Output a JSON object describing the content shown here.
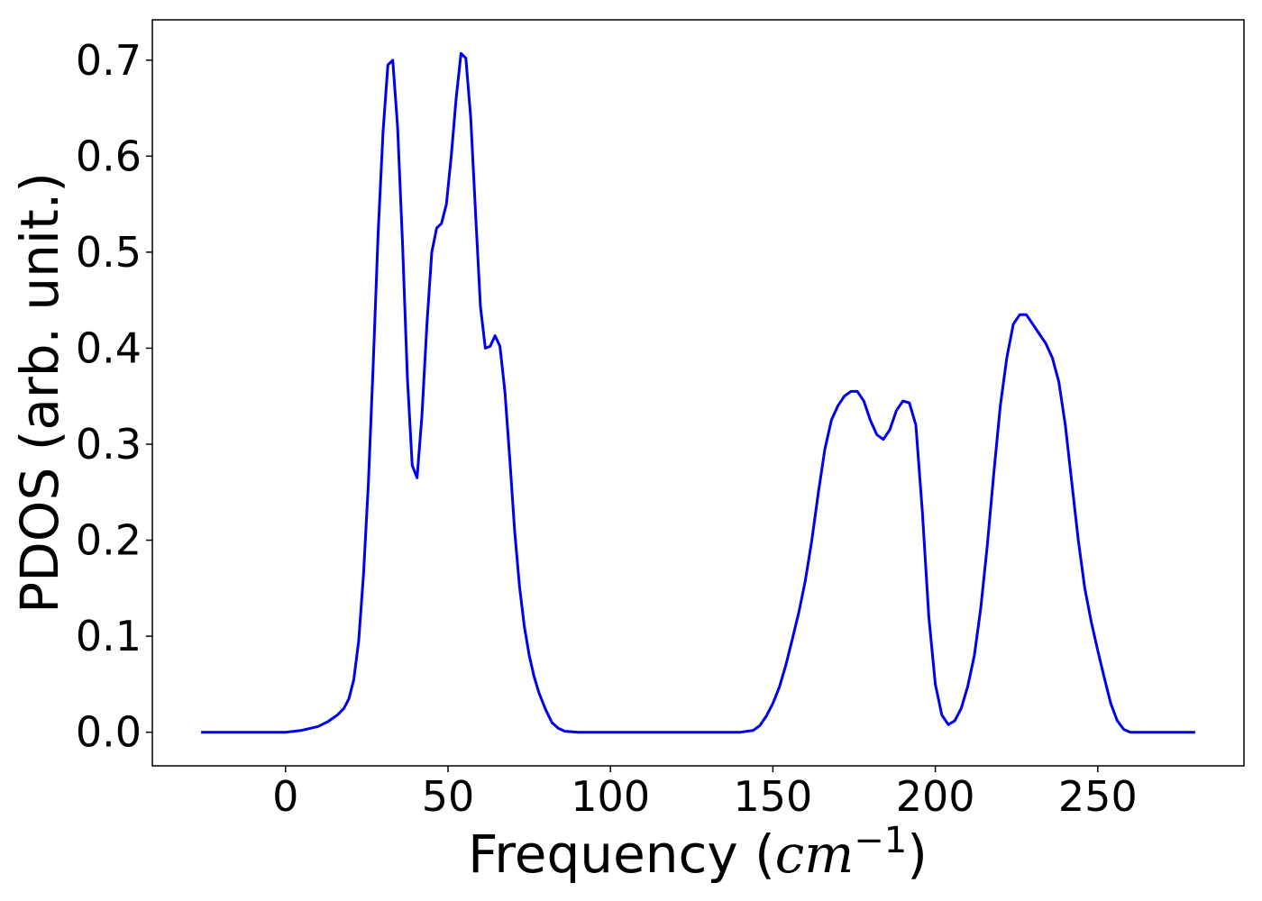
{
  "chart_data": {
    "type": "line",
    "xlabel_prefix": "Frequency (",
    "xlabel_math": "cm",
    "xlabel_sup": "−1",
    "xlabel_suffix": ")",
    "ylabel": "PDOS (arb. unit.)",
    "xlim": [
      -41,
      295
    ],
    "ylim": [
      -0.035,
      0.742
    ],
    "xticks": [
      0,
      50,
      100,
      150,
      200,
      250
    ],
    "xtick_labels": [
      "0",
      "50",
      "100",
      "150",
      "200",
      "250"
    ],
    "yticks": [
      0.0,
      0.1,
      0.2,
      0.3,
      0.4,
      0.5,
      0.6,
      0.7
    ],
    "ytick_labels": [
      "0.0",
      "0.1",
      "0.2",
      "0.3",
      "0.4",
      "0.5",
      "0.6",
      "0.7"
    ],
    "grid": false,
    "series": [
      {
        "color": "#0000ee",
        "x": [
          -26,
          -10,
          0,
          5,
          10,
          13,
          16,
          18,
          19.5,
          21,
          22.5,
          24,
          25.5,
          27,
          28.5,
          30,
          31.5,
          33,
          34.5,
          36,
          37.5,
          39,
          40.5,
          42,
          43.5,
          45,
          46.5,
          48,
          49.5,
          51,
          52.5,
          54,
          55.5,
          57,
          58.5,
          60,
          61.5,
          63,
          64.5,
          66,
          67.5,
          69,
          70.5,
          72,
          73.5,
          75,
          76.5,
          78,
          80,
          82,
          84,
          86,
          90,
          100,
          120,
          140,
          144,
          146,
          148,
          150,
          152,
          154,
          156,
          158,
          160,
          162,
          164,
          166,
          168,
          170,
          172,
          174,
          176,
          178,
          180,
          182,
          184,
          186,
          188,
          190,
          192,
          194,
          196,
          198,
          200,
          202,
          204,
          206,
          208,
          210,
          212,
          214,
          216,
          218,
          220,
          222,
          224,
          226,
          228,
          230,
          232,
          234,
          236,
          238,
          240,
          242,
          244,
          246,
          248,
          250,
          252,
          254,
          256,
          258,
          260,
          265,
          270,
          280
        ],
        "y": [
          0.0,
          0.0,
          0.0,
          0.002,
          0.006,
          0.011,
          0.018,
          0.025,
          0.035,
          0.055,
          0.095,
          0.165,
          0.26,
          0.385,
          0.52,
          0.625,
          0.695,
          0.7,
          0.63,
          0.51,
          0.37,
          0.278,
          0.265,
          0.33,
          0.425,
          0.5,
          0.525,
          0.53,
          0.55,
          0.6,
          0.66,
          0.707,
          0.702,
          0.64,
          0.54,
          0.443,
          0.4,
          0.402,
          0.413,
          0.402,
          0.355,
          0.285,
          0.21,
          0.152,
          0.11,
          0.08,
          0.058,
          0.041,
          0.024,
          0.01,
          0.004,
          0.001,
          0.0,
          0.0,
          0.0,
          0.0,
          0.002,
          0.007,
          0.017,
          0.03,
          0.047,
          0.07,
          0.097,
          0.125,
          0.158,
          0.2,
          0.25,
          0.295,
          0.325,
          0.34,
          0.35,
          0.355,
          0.355,
          0.345,
          0.325,
          0.31,
          0.305,
          0.315,
          0.335,
          0.345,
          0.343,
          0.32,
          0.23,
          0.12,
          0.05,
          0.018,
          0.008,
          0.012,
          0.025,
          0.048,
          0.08,
          0.13,
          0.195,
          0.27,
          0.34,
          0.39,
          0.425,
          0.435,
          0.435,
          0.425,
          0.415,
          0.405,
          0.39,
          0.365,
          0.32,
          0.26,
          0.2,
          0.15,
          0.115,
          0.085,
          0.057,
          0.03,
          0.012,
          0.003,
          0.0,
          0.0,
          0.0,
          0.0
        ]
      }
    ]
  }
}
